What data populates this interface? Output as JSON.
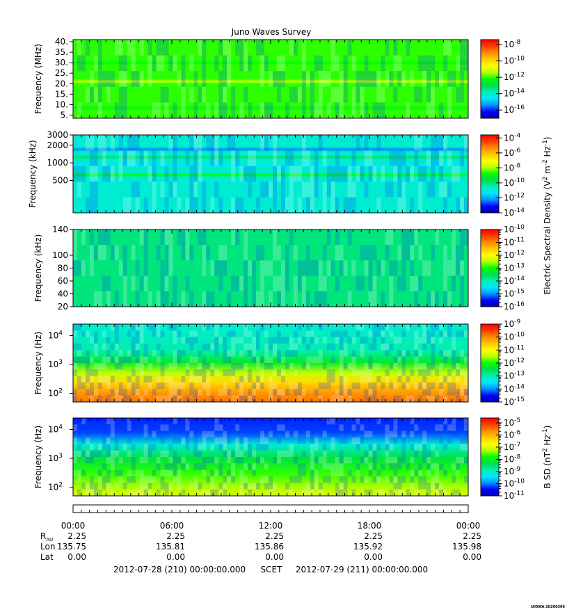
{
  "title": "Juno Waves Survey",
  "footer": {
    "start_label": "2012-07-28 (210) 00:00:00.000",
    "scet_label": "SCET",
    "end_label": "2012-07-29 (211) 00:00:00.000",
    "credit": "UIOWA 20200306"
  },
  "colors": {
    "colormap": [
      "#0000a8",
      "#0000ff",
      "#0096ff",
      "#00e6ff",
      "#00f0b4",
      "#00dc50",
      "#00ff00",
      "#b4ff00",
      "#ffff00",
      "#ffc800",
      "#ff8c00",
      "#ff3c00",
      "#ff0000"
    ],
    "axis": "#000000"
  },
  "chart_data": [
    {
      "type": "heatmap",
      "ylabel": "Frequency (MHz)",
      "yscale": "linear",
      "ylim": [
        3.5,
        41
      ],
      "yticks": [
        {
          "v": 5,
          "label": "5."
        },
        {
          "v": 10,
          "label": "10."
        },
        {
          "v": 15,
          "label": "15."
        },
        {
          "v": 20,
          "label": "20."
        },
        {
          "v": 25,
          "label": "25."
        },
        {
          "v": 30,
          "label": "30."
        },
        {
          "v": 35,
          "label": "35."
        },
        {
          "v": 40,
          "label": "40."
        }
      ],
      "colorbar": {
        "scale": "log",
        "lim": [
          -17,
          -7.4
        ],
        "ticks": [
          {
            "exp": "-8"
          },
          {
            "exp": "-10"
          },
          {
            "exp": "-12"
          },
          {
            "exp": "-14"
          },
          {
            "exp": "-16"
          }
        ],
        "tick_values": [
          -8,
          -10,
          -12,
          -14,
          -16
        ]
      },
      "background": 0.52,
      "bands": [
        {
          "y": 21,
          "level": 0.62
        },
        {
          "y": 8.5,
          "level": 0.48
        },
        {
          "y": 30,
          "level": 0.5
        }
      ]
    },
    {
      "type": "heatmap",
      "ylabel": "Frequency (kHz)",
      "yscale": "log",
      "ylim": [
        140,
        3000
      ],
      "yticks": [
        {
          "v": 500,
          "label": "500"
        },
        {
          "v": 1000,
          "label": "1000"
        },
        {
          "v": 2000,
          "label": "2000"
        },
        {
          "v": 3000,
          "label": "3000"
        }
      ],
      "colorbar": {
        "scale": "log",
        "lim": [
          -14,
          -3.6
        ],
        "ticks": [
          {
            "exp": "-4"
          },
          {
            "exp": "-6"
          },
          {
            "exp": "-8"
          },
          {
            "exp": "-10"
          },
          {
            "exp": "-12"
          },
          {
            "exp": "-14"
          }
        ],
        "tick_values": [
          -4,
          -6,
          -8,
          -10,
          -12,
          -14
        ]
      },
      "background": 0.3,
      "bands": [
        {
          "y": 620,
          "level": 0.48
        },
        {
          "y": 1700,
          "level": 0.16
        },
        {
          "y": 1250,
          "level": 0.4
        },
        {
          "y": 900,
          "level": 0.27
        }
      ]
    },
    {
      "type": "heatmap",
      "ylabel": "Frequency (kHz)",
      "yscale": "linear",
      "ylim": [
        20,
        140
      ],
      "yticks": [
        {
          "v": 20,
          "label": "20"
        },
        {
          "v": 40,
          "label": "40"
        },
        {
          "v": 60,
          "label": "60"
        },
        {
          "v": 80,
          "label": "80"
        },
        {
          "v": 100,
          "label": "100"
        },
        {
          "v": 140,
          "label": "140"
        }
      ],
      "colorbar": {
        "scale": "log",
        "lim": [
          -16,
          -10
        ],
        "ticks": [
          {
            "exp": "-10"
          },
          {
            "exp": "-11"
          },
          {
            "exp": "-12"
          },
          {
            "exp": "-13"
          },
          {
            "exp": "-14"
          },
          {
            "exp": "-15"
          },
          {
            "exp": "-16"
          }
        ],
        "tick_values": [
          -10,
          -11,
          -12,
          -13,
          -14,
          -15,
          -16
        ]
      },
      "background": 0.38,
      "bands": []
    },
    {
      "type": "heatmap",
      "ylabel": "Frequency (Hz)",
      "yscale": "log",
      "ylim": [
        50,
        25000
      ],
      "yticks": [
        {
          "v": 100,
          "label": "10",
          "exp": "2"
        },
        {
          "v": 1000,
          "label": "10",
          "exp": "3"
        },
        {
          "v": 10000,
          "label": "10",
          "exp": "4"
        }
      ],
      "colorbar": {
        "scale": "log",
        "lim": [
          -15,
          -9
        ],
        "ticks": [
          {
            "exp": "-9"
          },
          {
            "exp": "-10"
          },
          {
            "exp": "-11"
          },
          {
            "exp": "-12"
          },
          {
            "exp": "-13"
          },
          {
            "exp": "-14"
          },
          {
            "exp": "-15"
          }
        ],
        "tick_values": [
          -9,
          -10,
          -11,
          -12,
          -13,
          -14,
          -15
        ]
      },
      "gradient": [
        [
          25000,
          0.3
        ],
        [
          3000,
          0.34
        ],
        [
          1200,
          0.45
        ],
        [
          500,
          0.6
        ],
        [
          250,
          0.72
        ],
        [
          100,
          0.82
        ],
        [
          50,
          0.86
        ]
      ]
    },
    {
      "type": "heatmap",
      "ylabel": "Frequency (Hz)",
      "yscale": "log",
      "ylim": [
        50,
        25000
      ],
      "yticks": [
        {
          "v": 100,
          "label": "10",
          "exp": "2"
        },
        {
          "v": 1000,
          "label": "10",
          "exp": "3"
        },
        {
          "v": 10000,
          "label": "10",
          "exp": "4"
        }
      ],
      "colorbar": {
        "scale": "log",
        "lim": [
          -11,
          -4.6
        ],
        "ticks": [
          {
            "exp": "-5"
          },
          {
            "exp": "-6"
          },
          {
            "exp": "-7"
          },
          {
            "exp": "-8"
          },
          {
            "exp": "-9"
          },
          {
            "exp": "-10"
          },
          {
            "exp": "-11"
          }
        ],
        "tick_values": [
          -5,
          -6,
          -7,
          -8,
          -9,
          -10,
          -11
        ]
      },
      "gradient": [
        [
          25000,
          0.1
        ],
        [
          8000,
          0.12
        ],
        [
          3000,
          0.3
        ],
        [
          1000,
          0.43
        ],
        [
          300,
          0.52
        ],
        [
          100,
          0.58
        ],
        [
          50,
          0.62
        ]
      ]
    }
  ],
  "colorbar_labels": [
    {
      "text": "Electric Spectral Density (V",
      "sup1": "2",
      "mid": " m",
      "sup2": "-2",
      "mid2": " Hz",
      "sup3": "-1",
      "end": ")"
    },
    {
      "text": "B SD (nT",
      "sup1": "2",
      "mid": " Hz",
      "sup2": "-1",
      "end": ")"
    }
  ],
  "xaxis": {
    "tick_labels": [
      "00:00",
      "06:00",
      "12:00",
      "18:00",
      "00:00"
    ],
    "hours": [
      0,
      6,
      12,
      18,
      24
    ],
    "rows": [
      {
        "label": "R",
        "sub": "AU",
        "values": [
          "2.25",
          "2.25",
          "2.25",
          "2.25",
          "2.25"
        ]
      },
      {
        "label": "Lon",
        "values": [
          "135.75",
          "135.81",
          "135.86",
          "135.92",
          "135.98"
        ]
      },
      {
        "label": "Lat",
        "values": [
          "0.00",
          "0.00",
          "0.00",
          "0.00",
          "0.00"
        ]
      }
    ]
  }
}
